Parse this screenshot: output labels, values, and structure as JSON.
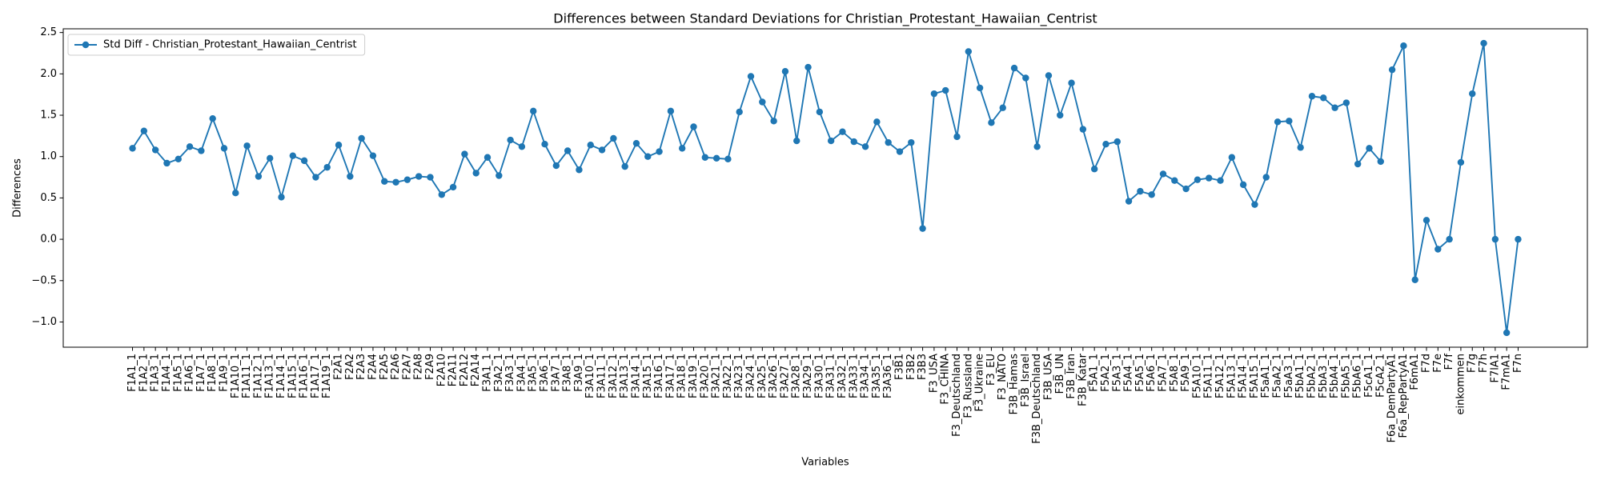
{
  "chart_data": {
    "type": "line",
    "title": "Differences between Standard Deviations for Christian_Protestant_Hawaiian_Centrist",
    "x_label": "Variables",
    "y_label": "Differences",
    "categories": [
      "F1A1_1",
      "F1A2_1",
      "F1A3_1",
      "F1A4_1",
      "F1A5_1",
      "F1A6_1",
      "F1A7_1",
      "F1A8_1",
      "F1A9_1",
      "F1A10_1",
      "F1A11_1",
      "F1A12_1",
      "F1A13_1",
      "F1A14_1",
      "F1A15_1",
      "F1A16_1",
      "F1A17_1",
      "F1A19_1",
      "F2A1",
      "F2A2",
      "F2A3",
      "F2A4",
      "F2A5",
      "F2A6",
      "F2A7",
      "F2A8",
      "F2A9",
      "F2A10",
      "F2A11",
      "F2A12",
      "F2A14",
      "F3A1_1",
      "F3A2_1",
      "F3A3_1",
      "F3A4_1",
      "F3A5_1",
      "F3A6_1",
      "F3A7_1",
      "F3A8_1",
      "F3A9_1",
      "F3A10_1",
      "F3A11_1",
      "F3A12_1",
      "F3A13_1",
      "F3A14_1",
      "F3A15_1",
      "F3A16_1",
      "F3A17_1",
      "F3A18_1",
      "F3A19_1",
      "F3A20_1",
      "F3A21_1",
      "F3A22_1",
      "F3A23_1",
      "F3A24_1",
      "F3A25_1",
      "F3A26_1",
      "F3A27_1",
      "F3A28_1",
      "F3A29_1",
      "F3A30_1",
      "F3A31_1",
      "F3A32_1",
      "F3A33_1",
      "F3A34_1",
      "F3A35_1",
      "F3A36_1",
      "F3B1",
      "F3B2",
      "F3B3",
      "F3_USA",
      "F3_CHINA",
      "F3_Deutschland",
      "F3_Russland",
      "F3_Ukraine",
      "F3_EU",
      "F3_NATO",
      "F3B_Hamas",
      "F3B_Israel",
      "F3B_Deutschland",
      "F3B_USA",
      "F3B_UN",
      "F3B_Iran",
      "F3B_Katar",
      "F5A1_1",
      "F5A2_1",
      "F5A3_1",
      "F5A4_1",
      "F5A5_1",
      "F5A6_1",
      "F5A7_1",
      "F5A8_1",
      "F5A9_1",
      "F5A10_1",
      "F5A11_1",
      "F5A12_1",
      "F5A13_1",
      "F5A14_1",
      "F5A15_1",
      "F5aA1_1",
      "F5aA2_1",
      "F5aA3_1",
      "F5bA1_1",
      "F5bA2_1",
      "F5bA3_1",
      "F5bA4_1",
      "F5bA5_1",
      "F5bA6_1",
      "F5cA1_1",
      "F5cA2_1",
      "F6a_DemPartyA1",
      "F6a_RepPartyA1",
      "F6mA1",
      "F7d",
      "F7e",
      "F7f",
      "einkommen",
      "F7g",
      "F7h",
      "F7lA1",
      "F7mA1",
      "F7n"
    ],
    "series": [
      {
        "name": "Std Diff - Christian_Protestant_Hawaiian_Centrist",
        "color": "#1f77b4",
        "values": [
          1.1,
          1.31,
          1.08,
          0.92,
          0.97,
          1.12,
          1.07,
          1.46,
          1.1,
          0.56,
          1.13,
          0.76,
          0.98,
          0.51,
          1.01,
          0.95,
          0.75,
          0.87,
          1.14,
          0.76,
          1.22,
          1.01,
          0.7,
          0.69,
          0.72,
          0.76,
          0.75,
          0.54,
          0.63,
          1.03,
          0.8,
          0.99,
          0.77,
          1.2,
          1.12,
          1.55,
          1.15,
          0.89,
          1.07,
          0.84,
          1.14,
          1.08,
          1.22,
          0.88,
          1.16,
          1.0,
          1.06,
          1.55,
          1.1,
          1.36,
          0.99,
          0.98,
          0.97,
          1.54,
          1.97,
          1.66,
          1.43,
          2.03,
          1.19,
          2.08,
          1.54,
          1.19,
          1.3,
          1.18,
          1.12,
          1.42,
          1.17,
          1.06,
          1.17,
          0.13,
          1.76,
          1.8,
          1.24,
          2.27,
          1.83,
          1.41,
          1.59,
          2.07,
          1.95,
          1.12,
          1.98,
          1.5,
          1.89,
          1.33,
          0.85,
          1.15,
          1.18,
          0.46,
          0.58,
          0.54,
          0.79,
          0.71,
          0.61,
          0.72,
          0.74,
          0.71,
          0.99,
          0.66,
          0.42,
          0.75,
          1.42,
          1.43,
          1.11,
          1.73,
          1.71,
          1.59,
          1.65,
          0.91,
          1.1,
          0.94,
          2.05,
          2.34,
          -0.49,
          0.23,
          -0.12,
          0.0,
          0.93,
          1.76,
          2.37,
          0.0,
          -1.13,
          0.0
        ]
      }
    ],
    "ylim": [
      -1.305,
      2.545
    ],
    "yticks": [
      {
        "value": -1.0,
        "label": "−1.0"
      },
      {
        "value": -0.5,
        "label": "−0.5"
      },
      {
        "value": 0.0,
        "label": "0.0"
      },
      {
        "value": 0.5,
        "label": "0.5"
      },
      {
        "value": 1.0,
        "label": "1.0"
      },
      {
        "value": 1.5,
        "label": "1.5"
      },
      {
        "value": 2.0,
        "label": "2.0"
      },
      {
        "value": 2.5,
        "label": "2.5"
      }
    ],
    "legend": "upper left",
    "grid": false
  }
}
